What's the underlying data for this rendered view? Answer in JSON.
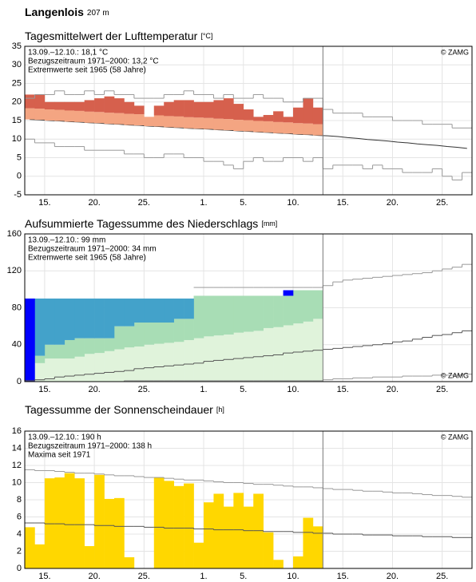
{
  "header": {
    "station": "Langenlois",
    "elevation": "207 m"
  },
  "chart_data": [
    {
      "type": "bar",
      "title": "Tagesmittelwert der Lufttemperatur",
      "unit": "[°C]",
      "annotations": [
        "13.09.–12.10.: 18,1 °C",
        "Bezugszeitraum 1971–2000: 13,2 °C",
        "Extremwerte seit 1965 (58 Jahre)"
      ],
      "annotation_colors": [
        "#000000",
        "#888888",
        "#bbbbbb"
      ],
      "source": "© ZAMG",
      "source_position": "top",
      "categories": [
        null,
        null,
        "15.",
        null,
        null,
        null,
        null,
        "20.",
        null,
        null,
        null,
        null,
        "25.",
        null,
        null,
        null,
        null,
        null,
        "1.",
        null,
        null,
        null,
        "5.",
        null,
        null,
        null,
        null,
        "10.",
        null,
        null,
        null,
        null,
        "15.",
        null,
        null,
        null,
        null,
        "20.",
        null,
        null,
        null,
        null,
        "25.",
        null,
        null
      ],
      "ylim": [
        -5,
        35
      ],
      "yticks": [
        -5,
        0,
        5,
        10,
        15,
        20,
        25,
        30,
        35
      ],
      "grid": true,
      "stacked": false,
      "series": [
        {
          "type": "line",
          "color": "#333333",
          "values": [
            15.3,
            15.2,
            15.0,
            14.9,
            14.7,
            14.6,
            14.4,
            14.3,
            14.1,
            14.0,
            13.8,
            13.7,
            13.5,
            13.4,
            13.2,
            13.1,
            12.9,
            12.8,
            12.7,
            12.5,
            12.4,
            12.2,
            12.1,
            11.9,
            11.8,
            11.6,
            11.5,
            11.3,
            11.2,
            11.0,
            10.9,
            10.7,
            10.4,
            10.2,
            9.9,
            9.7,
            9.5,
            9.2,
            9.0,
            8.7,
            8.5,
            8.3,
            8.0,
            7.8,
            7.5
          ]
        },
        {
          "type": "bar",
          "color": "#f4a582",
          "values": [
            18.3,
            18.2,
            18.0,
            17.9,
            17.7,
            17.6,
            17.4,
            17.3,
            17.1,
            17.0,
            16.8,
            16.7,
            16.0,
            16.4,
            16.2,
            16.1,
            15.9,
            15.8,
            15.7,
            15.5,
            15.4,
            15.2,
            15.1,
            14.9,
            14.8,
            14.6,
            14.5,
            14.3,
            14.2,
            14.0,
            null,
            null,
            null,
            null,
            null,
            null,
            null,
            null,
            null,
            null,
            null,
            null,
            null,
            null,
            null
          ]
        },
        {
          "type": "bar",
          "color": "#d6604d",
          "values": [
            22,
            22,
            20,
            20,
            20,
            20,
            20.5,
            21,
            21.5,
            21,
            20,
            19,
            16,
            19,
            20,
            20.5,
            20.5,
            20,
            20,
            20.5,
            21,
            19.5,
            18,
            16,
            16.5,
            17.5,
            16,
            18.5,
            21,
            18.5,
            null,
            null,
            null,
            null,
            null,
            null,
            null,
            null,
            null,
            null,
            null,
            null,
            null,
            null,
            null
          ]
        },
        {
          "type": "step",
          "color": "#999999",
          "values": [
            21,
            22,
            22,
            23,
            22,
            22,
            23,
            22,
            23,
            22,
            22,
            21,
            21,
            21,
            22,
            22,
            23,
            22,
            22,
            21,
            22,
            21,
            21,
            22,
            21,
            21,
            20,
            20,
            21,
            21,
            18,
            17,
            17,
            17,
            16,
            16,
            16,
            15,
            15,
            15,
            14,
            14,
            14,
            13,
            13
          ]
        },
        {
          "type": "step",
          "color": "#999999",
          "values": [
            10,
            9,
            9,
            8,
            8,
            8,
            7,
            7,
            7,
            7,
            6,
            6,
            5,
            5,
            6,
            6,
            5,
            5,
            4,
            4,
            3,
            2,
            4,
            5,
            4,
            4,
            5,
            5,
            4,
            5,
            2,
            3,
            3,
            3,
            2,
            3,
            2,
            2,
            1,
            1,
            1,
            2,
            0,
            -1,
            1
          ]
        }
      ]
    },
    {
      "type": "bar",
      "title": "Aufsummierte Tagessumme des Niederschlags",
      "unit": "[mm]",
      "annotations": [
        "13.09.–12.10.: 99 mm",
        "Bezugszeitraum 1971–2000: 34 mm",
        "Extremwerte seit 1965 (58 Jahre)"
      ],
      "annotation_colors": [
        "#000000",
        "#888888",
        "#bbbbbb"
      ],
      "source": "© ZAMG",
      "source_position": "bottom",
      "categories": [
        null,
        null,
        "15.",
        null,
        null,
        null,
        null,
        "20.",
        null,
        null,
        null,
        null,
        "25.",
        null,
        null,
        null,
        null,
        null,
        "1.",
        null,
        null,
        null,
        "5.",
        null,
        null,
        null,
        null,
        "10.",
        null,
        null,
        null,
        null,
        "15.",
        null,
        null,
        null,
        null,
        "20.",
        null,
        null,
        null,
        null,
        "25.",
        null,
        null
      ],
      "ylim": [
        0,
        160
      ],
      "yticks": [
        0,
        40,
        80,
        120,
        160
      ],
      "grid": true,
      "stacked": true,
      "series": [
        {
          "type": "bar",
          "color": "#e0f3db",
          "values": [
            null,
            20,
            25,
            25,
            25,
            27,
            30,
            31,
            33,
            35,
            37,
            38,
            40,
            41,
            42,
            43,
            45,
            47,
            49,
            50,
            51,
            53,
            54,
            55,
            58,
            59,
            61,
            63,
            65,
            68,
            null,
            null,
            null,
            null,
            null,
            null,
            null,
            null,
            null,
            null,
            null,
            null,
            null,
            null,
            null
          ]
        },
        {
          "type": "bar",
          "color": "#a8ddb5",
          "values": [
            null,
            8,
            15,
            15,
            20,
            20,
            17,
            16,
            14,
            25,
            23,
            26,
            24,
            23,
            22,
            25,
            23,
            46,
            44,
            43,
            42,
            40,
            39,
            38,
            35,
            34,
            32,
            36,
            34,
            31,
            null,
            null,
            null,
            null,
            null,
            null,
            null,
            null,
            null,
            null,
            null,
            null,
            null,
            null,
            null
          ]
        },
        {
          "type": "bar",
          "color": "#43a2ca",
          "values": [
            null,
            62,
            50,
            50,
            45,
            43,
            43,
            43,
            43,
            30,
            30,
            26,
            26,
            26,
            26,
            22,
            22,
            null,
            null,
            null,
            null,
            null,
            null,
            null,
            null,
            null,
            null,
            null,
            null,
            null,
            null,
            null,
            null,
            null,
            null,
            null,
            null,
            null,
            null,
            null,
            null,
            null,
            null,
            null,
            null
          ]
        },
        {
          "type": "bar",
          "color": "#0000ff",
          "values": [
            90,
            null,
            null,
            null,
            null,
            null,
            null,
            null,
            null,
            null,
            null,
            null,
            null,
            null,
            null,
            null,
            null,
            null,
            null,
            null,
            null,
            null,
            null,
            null,
            null,
            null,
            6,
            null,
            null,
            null,
            null,
            null,
            null,
            null,
            null,
            null,
            null,
            null,
            null,
            null,
            null,
            null,
            null,
            null,
            null
          ]
        },
        {
          "type": "step",
          "color": "#999999",
          "values": [
            null,
            null,
            null,
            null,
            null,
            null,
            null,
            null,
            null,
            null,
            null,
            null,
            null,
            null,
            null,
            null,
            null,
            102,
            102,
            102,
            102,
            102,
            102,
            102,
            102,
            102,
            102,
            102,
            102,
            102,
            104,
            108,
            110,
            111,
            112,
            113,
            114,
            115,
            116,
            117,
            118,
            120,
            122,
            124,
            127
          ]
        },
        {
          "type": "step",
          "color": "#555555",
          "values": [
            1,
            2,
            3,
            5,
            6,
            7,
            8,
            9,
            10,
            11,
            12,
            14,
            15,
            16,
            17,
            18,
            19,
            20,
            22,
            23,
            24,
            25,
            26,
            27,
            28,
            29,
            31,
            32,
            33,
            34,
            35,
            36,
            37,
            38,
            39,
            40,
            41,
            43,
            44,
            46,
            48,
            50,
            51,
            53,
            55
          ]
        },
        {
          "type": "step",
          "color": "#999999",
          "values": [
            0,
            0,
            0,
            0,
            0,
            0,
            0,
            0,
            0,
            0,
            1,
            1,
            1,
            1,
            1,
            1,
            1,
            1,
            1,
            1,
            1,
            1,
            1,
            1,
            1,
            1,
            1,
            1,
            1,
            1,
            2,
            3,
            3,
            4,
            4,
            5,
            5,
            5,
            6,
            6,
            6,
            7,
            7,
            7,
            8
          ]
        }
      ]
    },
    {
      "type": "bar",
      "title": "Tagessumme der Sonnenscheindauer",
      "unit": "[h]",
      "annotations": [
        "13.09.–12.10.: 190 h",
        "Bezugszeitraum 1971–2000: 138 h",
        "Maxima seit 1971"
      ],
      "annotation_colors": [
        "#000000",
        "#888888",
        "#bbbbbb"
      ],
      "source": "© ZAMG",
      "source_position": "top",
      "categories": [
        null,
        null,
        "15.",
        null,
        null,
        null,
        null,
        "20.",
        null,
        null,
        null,
        null,
        "25.",
        null,
        null,
        null,
        null,
        null,
        "1.",
        null,
        null,
        null,
        "5.",
        null,
        null,
        null,
        null,
        "10.",
        null,
        null,
        null,
        null,
        "15.",
        null,
        null,
        null,
        null,
        "20.",
        null,
        null,
        null,
        null,
        "25.",
        null,
        null
      ],
      "ylim": [
        0,
        16
      ],
      "yticks": [
        0,
        2,
        4,
        6,
        8,
        10,
        12,
        14,
        16
      ],
      "grid": true,
      "stacked": false,
      "series": [
        {
          "type": "bar",
          "color": "#ffd700",
          "values": [
            4.8,
            2.8,
            10.5,
            10.6,
            11.1,
            10.5,
            2.6,
            10.9,
            8.1,
            8.2,
            1.3,
            0,
            0,
            10.6,
            10.2,
            9.6,
            9.9,
            3.0,
            7.7,
            8.7,
            7.2,
            8.8,
            7.2,
            8.7,
            4.2,
            1.0,
            0,
            1.4,
            5.9,
            4.9,
            null,
            null,
            null,
            null,
            null,
            null,
            null,
            null,
            null,
            null,
            null,
            null,
            null,
            null,
            null
          ]
        },
        {
          "type": "step",
          "color": "#999999",
          "values": [
            11.5,
            11.4,
            11.4,
            11.3,
            11.2,
            11.1,
            11.1,
            11.0,
            10.9,
            10.8,
            10.8,
            10.7,
            10.6,
            10.6,
            10.5,
            10.4,
            10.3,
            10.3,
            10.2,
            10.1,
            10.0,
            10.0,
            9.9,
            9.8,
            9.8,
            9.7,
            9.6,
            9.5,
            9.5,
            9.4,
            9.3,
            9.2,
            9.2,
            9.1,
            9.0,
            9.0,
            8.9,
            8.8,
            8.8,
            8.7,
            8.6,
            8.5,
            8.5,
            8.4,
            8.3
          ]
        },
        {
          "type": "step",
          "color": "#555555",
          "values": [
            5.3,
            5.3,
            5.2,
            5.2,
            5.1,
            5.1,
            5.1,
            5.0,
            5.0,
            4.9,
            4.9,
            4.9,
            4.8,
            4.8,
            4.7,
            4.7,
            4.7,
            4.6,
            4.6,
            4.5,
            4.5,
            4.5,
            4.4,
            4.4,
            4.3,
            4.3,
            4.3,
            4.2,
            4.2,
            4.1,
            4.1,
            4.0,
            4.0,
            4.0,
            3.9,
            3.9,
            3.9,
            3.8,
            3.8,
            3.8,
            3.7,
            3.7,
            3.7,
            3.6,
            3.6
          ]
        }
      ]
    }
  ]
}
